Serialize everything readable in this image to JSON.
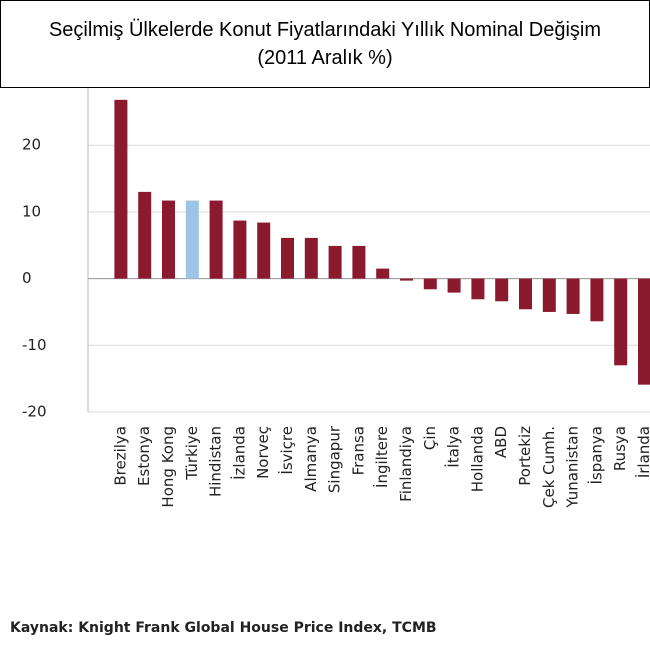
{
  "chart_data": {
    "type": "bar",
    "title": "Seçilmiş Ülkelerde Konut Fiyatlarındaki Yıllık Nominal Değişim (2011 Aralık  %)",
    "source": "Kaynak: Knight Frank Global House Price Index, TCMB",
    "categories": [
      "Brezilya",
      "Estonya",
      "Hong Kong",
      "Türkiye",
      "Hindistan",
      "İzlanda",
      "Norveç",
      "İsviçre",
      "Almanya",
      "Singapur",
      "Fransa",
      "İngiltere",
      "Finlandiya",
      "Çin",
      "İtalya",
      "Hollanda",
      "ABD",
      "Portekiz",
      "Çek Cumh.",
      "Yunanistan",
      "İspanya",
      "Rusya",
      "İrlanda"
    ],
    "values": [
      26.8,
      13,
      11.7,
      11.7,
      11.7,
      8.7,
      8.4,
      6.1,
      6.1,
      4.9,
      4.9,
      1.5,
      -0.3,
      -1.6,
      -2.1,
      -3.1,
      -3.4,
      -4.6,
      -5,
      -5.3,
      -6.4,
      -13,
      -15.9
    ],
    "colors": [
      "#8b1a2f",
      "#8b1a2f",
      "#8b1a2f",
      "#9dc3e6",
      "#8b1a2f",
      "#8b1a2f",
      "#8b1a2f",
      "#8b1a2f",
      "#8b1a2f",
      "#8b1a2f",
      "#8b1a2f",
      "#8b1a2f",
      "#8b1a2f",
      "#8b1a2f",
      "#8b1a2f",
      "#8b1a2f",
      "#8b1a2f",
      "#8b1a2f",
      "#8b1a2f",
      "#8b1a2f",
      "#8b1a2f",
      "#8b1a2f",
      "#8b1a2f"
    ],
    "ylim": [
      -20,
      30
    ],
    "yticks": [
      -20,
      -10,
      0,
      10,
      20
    ],
    "grid": true
  }
}
